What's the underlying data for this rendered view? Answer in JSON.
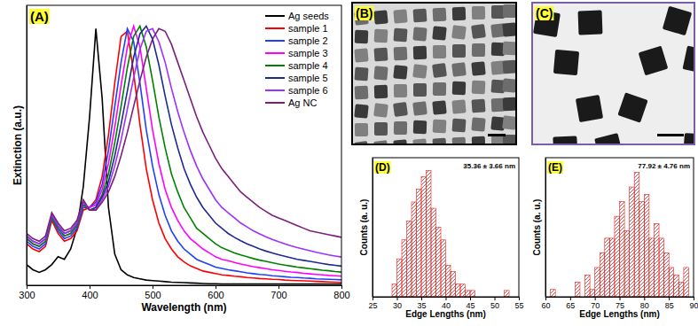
{
  "chart_data": [
    {
      "type": "line",
      "title": "(A)",
      "xlabel": "Wavelength (nm)",
      "ylabel": "Extinction (a.u.)",
      "x": [
        300,
        310,
        320,
        330,
        340,
        350,
        360,
        370,
        380,
        390,
        400,
        410,
        420,
        430,
        440,
        450,
        460,
        470,
        480,
        490,
        500,
        510,
        520,
        530,
        540,
        550,
        560,
        570,
        580,
        590,
        600,
        610,
        620,
        630,
        640,
        650,
        660,
        670,
        680,
        690,
        700,
        710,
        720,
        730,
        740,
        750,
        760,
        770,
        780,
        790,
        800
      ],
      "xlim": [
        300,
        800
      ],
      "xticks": [
        300,
        400,
        500,
        600,
        700,
        800
      ],
      "ylim": [
        0,
        1.08
      ],
      "tick_labels": "x",
      "grid": false,
      "legend": "upper right",
      "series": [
        {
          "name": "Ag seeds",
          "color": "#000000",
          "values": [
            0.08,
            0.06,
            0.05,
            0.06,
            0.08,
            0.11,
            0.1,
            0.14,
            0.22,
            0.38,
            0.65,
            0.99,
            0.72,
            0.3,
            0.12,
            0.06,
            0.04,
            0.03,
            0.025,
            0.02,
            0.018,
            0.016,
            0.014,
            0.012,
            0.011,
            0.01,
            0.009,
            0.008,
            0.007,
            0.006,
            0.006,
            0.005,
            0.005,
            0.005,
            0.005,
            0.005,
            0.005,
            0.005,
            0.005,
            0.005,
            0.005,
            0.005,
            0.005,
            0.005,
            0.005,
            0.005,
            0.005,
            0.005,
            0.005,
            0.005,
            0.005
          ]
        },
        {
          "name": "sample 1",
          "color": "#ff0000",
          "values": [
            0.16,
            0.14,
            0.13,
            0.15,
            0.25,
            0.2,
            0.17,
            0.18,
            0.21,
            0.29,
            0.3,
            0.33,
            0.42,
            0.58,
            0.78,
            0.96,
            0.98,
            0.82,
            0.62,
            0.45,
            0.33,
            0.24,
            0.18,
            0.14,
            0.11,
            0.09,
            0.075,
            0.065,
            0.055,
            0.05,
            0.045,
            0.04,
            0.038,
            0.035,
            0.033,
            0.03,
            0.028,
            0.026,
            0.025,
            0.023,
            0.022,
            0.02,
            0.019,
            0.018,
            0.017,
            0.016,
            0.015,
            0.014,
            0.013,
            0.012,
            0.011
          ]
        },
        {
          "name": "sample 2",
          "color": "#1f3fff",
          "values": [
            0.17,
            0.15,
            0.14,
            0.16,
            0.26,
            0.21,
            0.18,
            0.19,
            0.22,
            0.3,
            0.3,
            0.32,
            0.39,
            0.52,
            0.69,
            0.86,
            0.99,
            0.94,
            0.78,
            0.6,
            0.46,
            0.35,
            0.27,
            0.21,
            0.17,
            0.14,
            0.12,
            0.1,
            0.09,
            0.08,
            0.07,
            0.065,
            0.06,
            0.056,
            0.052,
            0.048,
            0.045,
            0.042,
            0.04,
            0.037,
            0.035,
            0.033,
            0.031,
            0.03,
            0.028,
            0.027,
            0.025,
            0.024,
            0.023,
            0.022,
            0.021
          ]
        },
        {
          "name": "sample 3",
          "color": "#ff00ff",
          "values": [
            0.18,
            0.16,
            0.15,
            0.17,
            0.27,
            0.22,
            0.19,
            0.2,
            0.23,
            0.31,
            0.3,
            0.31,
            0.37,
            0.47,
            0.61,
            0.77,
            0.92,
            1.0,
            0.92,
            0.76,
            0.6,
            0.47,
            0.37,
            0.3,
            0.25,
            0.21,
            0.18,
            0.16,
            0.14,
            0.125,
            0.11,
            0.1,
            0.095,
            0.088,
            0.082,
            0.077,
            0.072,
            0.068,
            0.064,
            0.06,
            0.057,
            0.054,
            0.051,
            0.049,
            0.046,
            0.044,
            0.042,
            0.04,
            0.038,
            0.037,
            0.035
          ]
        },
        {
          "name": "sample 4",
          "color": "#008000",
          "values": [
            0.18,
            0.16,
            0.15,
            0.17,
            0.26,
            0.22,
            0.19,
            0.2,
            0.23,
            0.31,
            0.29,
            0.3,
            0.35,
            0.43,
            0.55,
            0.69,
            0.84,
            0.96,
            1.0,
            0.92,
            0.79,
            0.65,
            0.53,
            0.43,
            0.36,
            0.3,
            0.26,
            0.22,
            0.2,
            0.18,
            0.16,
            0.145,
            0.135,
            0.125,
            0.117,
            0.11,
            0.103,
            0.097,
            0.092,
            0.087,
            0.082,
            0.078,
            0.074,
            0.07,
            0.067,
            0.064,
            0.061,
            0.058,
            0.056,
            0.053,
            0.051
          ]
        },
        {
          "name": "sample 5",
          "color": "#1f2a8f",
          "values": [
            0.19,
            0.17,
            0.16,
            0.18,
            0.27,
            0.23,
            0.2,
            0.21,
            0.24,
            0.32,
            0.29,
            0.3,
            0.34,
            0.4,
            0.5,
            0.62,
            0.75,
            0.88,
            0.97,
            1.0,
            0.95,
            0.85,
            0.73,
            0.62,
            0.53,
            0.45,
            0.39,
            0.34,
            0.3,
            0.27,
            0.24,
            0.22,
            0.2,
            0.185,
            0.172,
            0.16,
            0.15,
            0.14,
            0.132,
            0.125,
            0.118,
            0.112,
            0.106,
            0.1,
            0.096,
            0.092,
            0.088,
            0.084,
            0.08,
            0.077,
            0.074
          ]
        },
        {
          "name": "sample 6",
          "color": "#9b30ff",
          "values": [
            0.19,
            0.17,
            0.16,
            0.18,
            0.27,
            0.23,
            0.2,
            0.21,
            0.24,
            0.32,
            0.29,
            0.29,
            0.33,
            0.38,
            0.46,
            0.56,
            0.68,
            0.8,
            0.91,
            0.98,
            0.99,
            0.94,
            0.86,
            0.76,
            0.67,
            0.59,
            0.52,
            0.46,
            0.41,
            0.37,
            0.33,
            0.3,
            0.28,
            0.26,
            0.24,
            0.225,
            0.21,
            0.198,
            0.187,
            0.177,
            0.168,
            0.16,
            0.152,
            0.145,
            0.139,
            0.133,
            0.127,
            0.122,
            0.117,
            0.113,
            0.109
          ]
        },
        {
          "name": "Ag NC",
          "color": "#7b1f7b",
          "values": [
            0.2,
            0.18,
            0.17,
            0.19,
            0.28,
            0.24,
            0.21,
            0.22,
            0.25,
            0.33,
            0.29,
            0.29,
            0.32,
            0.36,
            0.42,
            0.5,
            0.59,
            0.69,
            0.79,
            0.88,
            0.95,
            0.99,
            0.98,
            0.93,
            0.86,
            0.79,
            0.72,
            0.65,
            0.59,
            0.54,
            0.49,
            0.45,
            0.42,
            0.39,
            0.36,
            0.34,
            0.32,
            0.3,
            0.285,
            0.27,
            0.26,
            0.25,
            0.24,
            0.23,
            0.22,
            0.21,
            0.205,
            0.2,
            0.195,
            0.19,
            0.185
          ]
        }
      ]
    },
    {
      "type": "histogram",
      "title": "(D)",
      "xlabel": "Edge Lengths (nm)",
      "ylabel": "Counts (a. u.)",
      "annotations": [
        "35.36 ± 3.66 nm"
      ],
      "color": "#e02020",
      "bins": [
        29,
        30,
        31,
        32,
        33,
        34,
        35,
        36,
        37,
        38,
        39,
        40,
        41,
        42,
        43,
        44,
        45,
        46,
        47,
        48,
        49,
        50,
        51,
        52,
        53
      ],
      "counts": [
        2,
        6,
        9,
        12,
        15,
        17,
        19,
        20,
        14,
        11,
        9,
        5,
        4,
        2,
        2,
        1,
        1,
        0,
        0,
        0,
        0,
        0,
        0,
        1
      ],
      "xlim": [
        25,
        55
      ],
      "xticks": [
        25,
        30,
        35,
        40,
        45,
        50,
        55
      ],
      "ylim": [
        0,
        22
      ],
      "tick_labels": "x"
    },
    {
      "type": "histogram",
      "title": "(E)",
      "xlabel": "Edge Lengths (nm)",
      "ylabel": "Counts (a. u.)",
      "annotations": [
        "77.92 ± 4.76 nm"
      ],
      "color": "#e02020",
      "bins": [
        61,
        62,
        63,
        64,
        65,
        66,
        67,
        68,
        69,
        70,
        71,
        72,
        73,
        74,
        75,
        76,
        77,
        78,
        79,
        80,
        81,
        82,
        83,
        84,
        85,
        86,
        87,
        88,
        89
      ],
      "counts": [
        1,
        0,
        0,
        0,
        0,
        2,
        0,
        3,
        1,
        4,
        6,
        8,
        8,
        11,
        13,
        9,
        15,
        17,
        13,
        14,
        8,
        10,
        8,
        6,
        4,
        3,
        2,
        4
      ],
      "xlim": [
        60,
        90
      ],
      "xticks": [
        60,
        65,
        70,
        75,
        80,
        85,
        90
      ],
      "ylim": [
        0,
        19
      ],
      "tick_labels": "x"
    }
  ],
  "images": [
    {
      "title": "(B)"
    },
    {
      "title": "(C)"
    }
  ]
}
